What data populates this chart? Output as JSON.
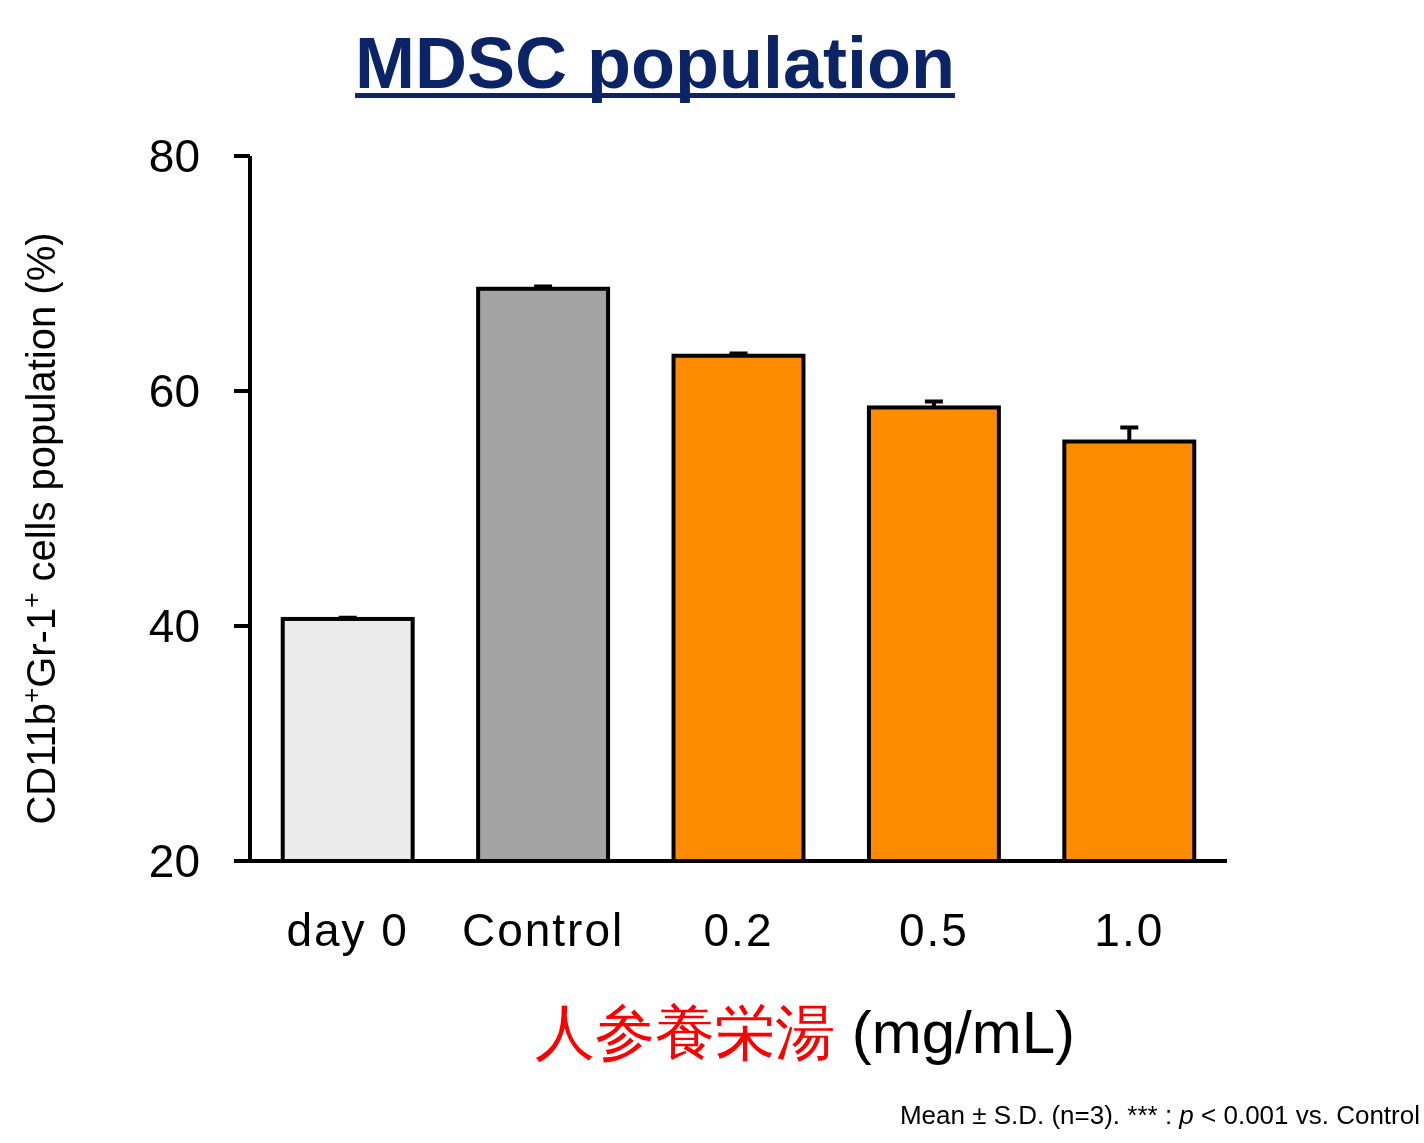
{
  "chart_data": {
    "type": "bar",
    "title": "MDSC population",
    "categories": [
      "day 0",
      "Control",
      "0.2",
      "0.5",
      "1.0"
    ],
    "values": [
      40.6,
      68.7,
      63.0,
      58.6,
      55.7
    ],
    "errors": [
      0.1,
      0.2,
      0.2,
      0.5,
      1.2
    ],
    "colors": [
      "#ebebeb",
      "#a3a3a3",
      "#ff8c00",
      "#ff8c00",
      "#ff8c00"
    ],
    "ylim": [
      20,
      80
    ],
    "yticks": [
      20,
      40,
      60,
      80
    ],
    "ylabel": "CD11b$^{+}$Gr-1$^{+}$ cells population (%)",
    "xlabel": "人参養栄湯 (mg/mL)",
    "annotations": [
      "Mean ± S.D.  (n=3). *** : *p* < 0.001 vs. Control"
    ]
  }
}
